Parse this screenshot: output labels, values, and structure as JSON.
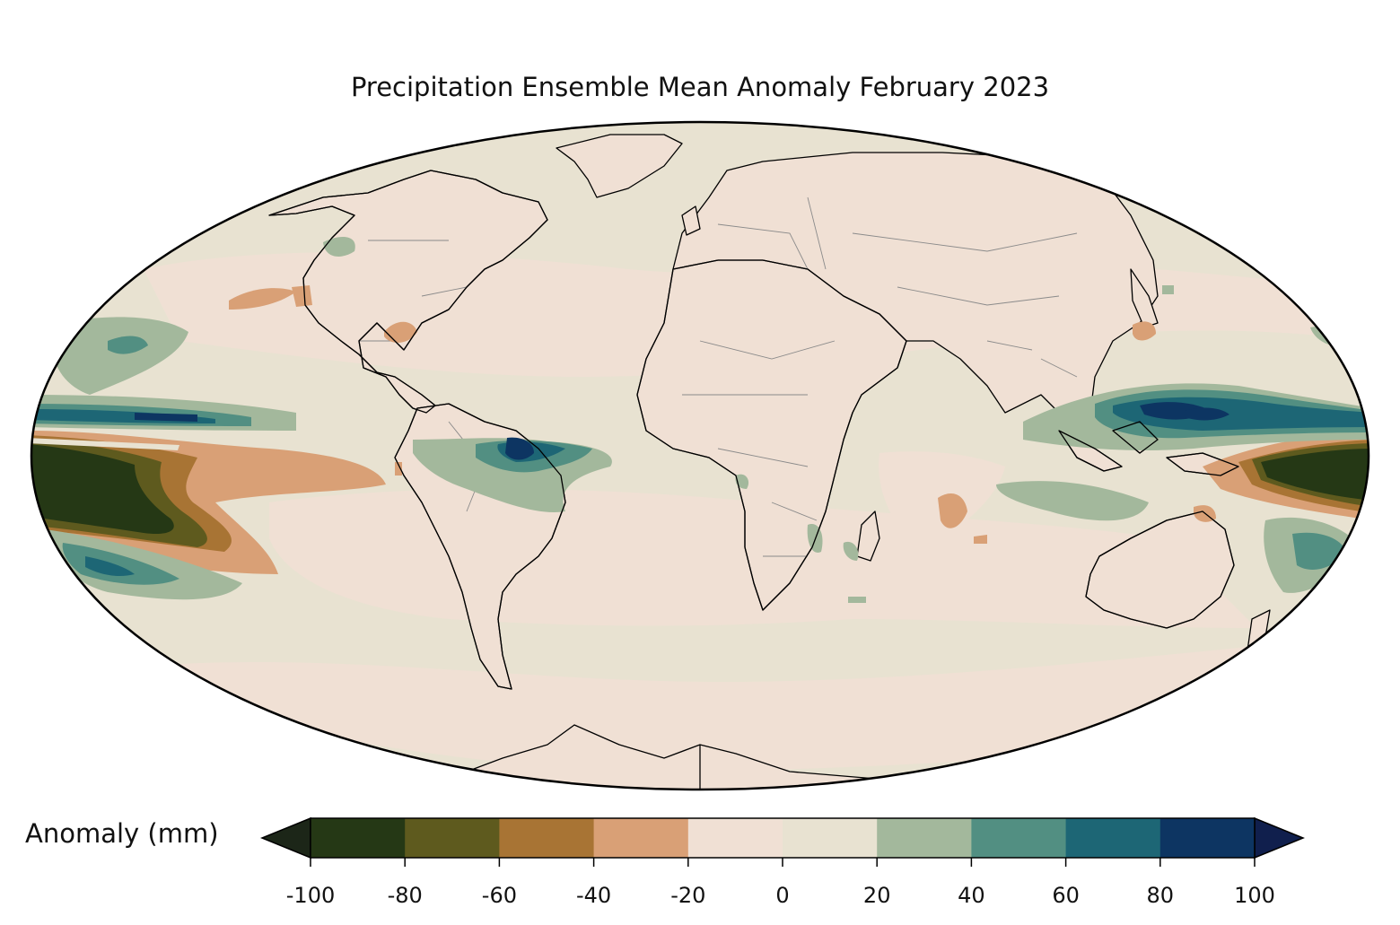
{
  "title": "Precipitation Ensemble Mean Anomaly February 2023",
  "projection": "Mollweide",
  "colorbar": {
    "label": "Anomaly (mm)",
    "ticks": [
      "-100",
      "-80",
      "-60",
      "-40",
      "-20",
      "0",
      "20",
      "40",
      "60",
      "80",
      "100"
    ],
    "bins": [
      {
        "range": [
          -100,
          -80
        ],
        "color": "#253815"
      },
      {
        "range": [
          -80,
          -60
        ],
        "color": "#5e5a1e"
      },
      {
        "range": [
          -60,
          -40
        ],
        "color": "#a87434"
      },
      {
        "range": [
          -40,
          -20
        ],
        "color": "#d9a076"
      },
      {
        "range": [
          -20,
          0
        ],
        "color": "#f0e0d4"
      },
      {
        "range": [
          0,
          20
        ],
        "color": "#e8e2d1"
      },
      {
        "range": [
          20,
          40
        ],
        "color": "#a3b89c"
      },
      {
        "range": [
          40,
          60
        ],
        "color": "#528f82"
      },
      {
        "range": [
          60,
          80
        ],
        "color": "#1d6675"
      },
      {
        "range": [
          80,
          100
        ],
        "color": "#0d3562"
      }
    ],
    "under_color": "#1c2618",
    "over_color": "#101f4d",
    "extend": "both"
  },
  "colors": {
    "ocean_base": "#e8e2d1",
    "land_base": "#f0e0d4",
    "coastline": "#000000",
    "borders": "#8a8a8a"
  }
}
